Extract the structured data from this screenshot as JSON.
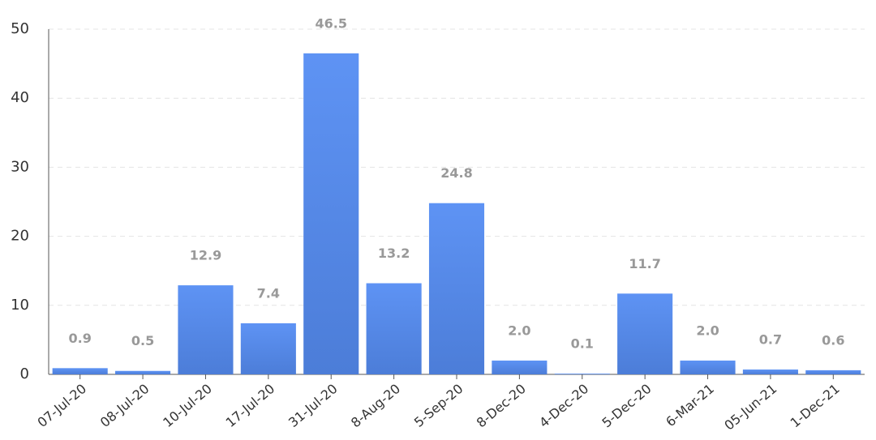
{
  "chart_data": {
    "type": "bar",
    "categories": [
      "07-Jul-20",
      "08-Jul-20",
      "10-Jul-20",
      "17-Jul-20",
      "31-Jul-20",
      "8-Aug-20",
      "5-Sep-20",
      "8-Dec-20",
      "4-Dec-20",
      "5-Dec-20",
      "6-Mar-21",
      "05-Jun-21",
      "1-Dec-21"
    ],
    "values": [
      0.9,
      0.5,
      12.9,
      7.4,
      46.5,
      13.2,
      24.8,
      2.0,
      0.1,
      11.7,
      2.0,
      0.7,
      0.6
    ],
    "value_labels": [
      "0.9",
      "0.5",
      "12.9",
      "7.4",
      "46.5",
      "13.2",
      "24.8",
      "2.0",
      "0.1",
      "11.7",
      "2.0",
      "0.7",
      "0.6"
    ],
    "color": "#5a8ef0",
    "ylim": [
      0,
      50
    ],
    "yticks": [
      0,
      10,
      20,
      30,
      40,
      50
    ],
    "grid": true
  }
}
